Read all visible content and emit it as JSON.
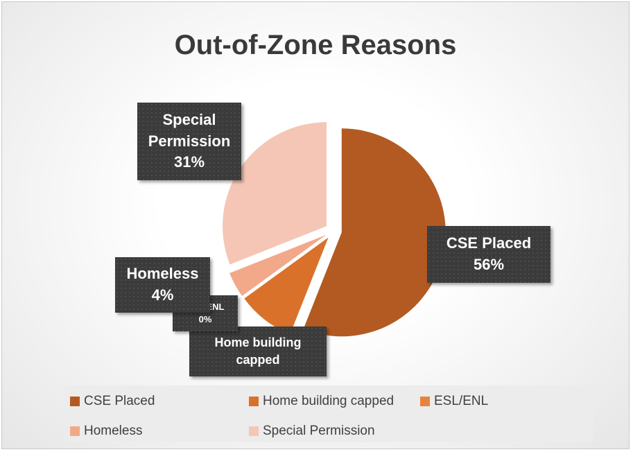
{
  "chart_data": {
    "type": "pie",
    "title": "Out-of-Zone Reasons",
    "categories": [
      "CSE Placed",
      "Home building capped",
      "ESL/ENL",
      "Homeless",
      "Special Permission"
    ],
    "values": [
      56,
      9,
      0,
      4,
      31
    ],
    "value_labels": [
      "56%",
      null,
      "0%",
      "4%",
      "31%"
    ],
    "colors": [
      "#b35a22",
      "#d9712b",
      "#e8823f",
      "#f2a98a",
      "#f5c6b5"
    ],
    "legend": "bottom"
  }
}
